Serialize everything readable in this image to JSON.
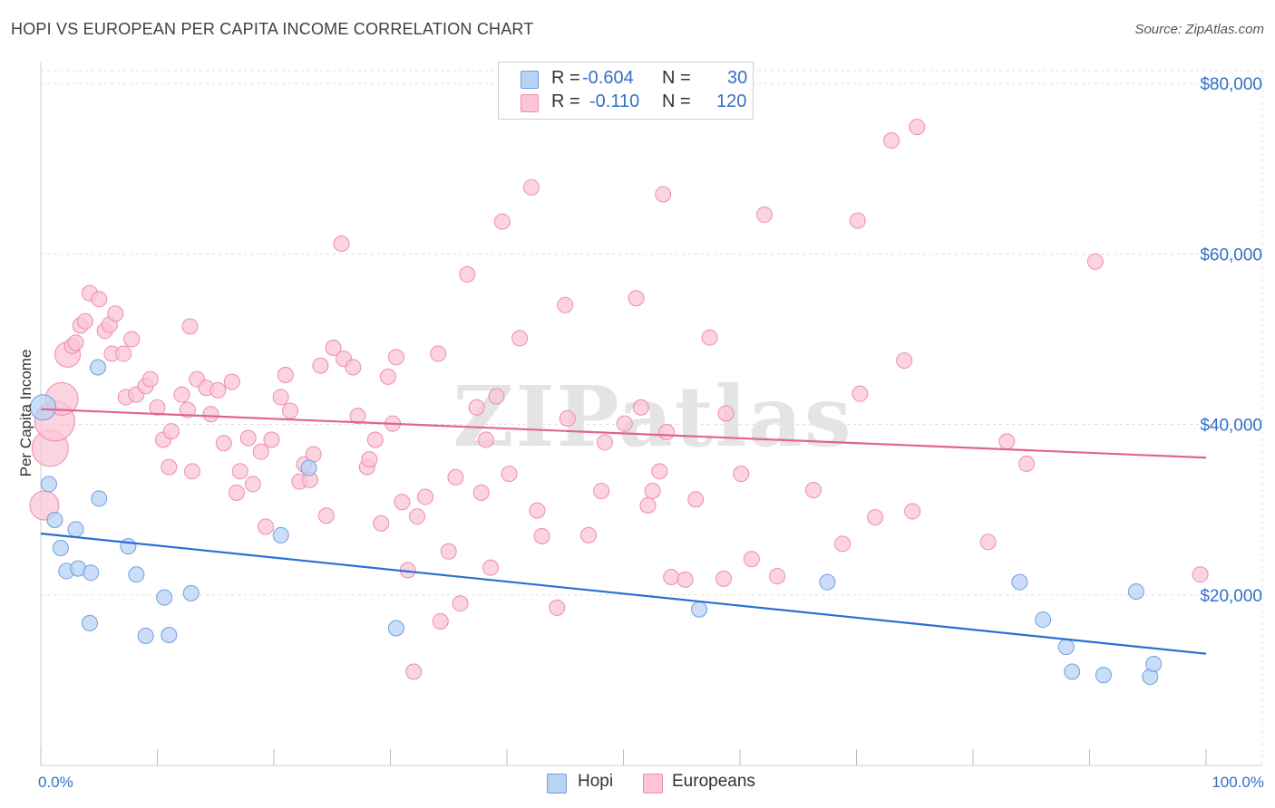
{
  "title": "HOPI VS EUROPEAN PER CAPITA INCOME CORRELATION CHART",
  "source": "Source: ZipAtlas.com",
  "watermark": "ZIPatlas",
  "legend": {
    "r_label": "R =",
    "n_label": "N =",
    "rows": [
      {
        "r": "-0.604",
        "n": "30",
        "color": "#b8d3f5",
        "border": "#6e9fe0"
      },
      {
        "r": "-0.110",
        "n": "120",
        "color": "#fbc5d6",
        "border": "#ec8db0"
      }
    ]
  },
  "bottom_legend": [
    "Hopi",
    "Europeans"
  ],
  "chart_data": {
    "type": "scatter",
    "title": "HOPI VS EUROPEAN PER CAPITA INCOME CORRELATION CHART",
    "xlabel": "",
    "ylabel": "Per Capita Income",
    "xlim": [
      0,
      100
    ],
    "ylim": [
      0,
      81500
    ],
    "x_tick_labels": [
      "0.0%",
      "100.0%"
    ],
    "y_ticks": [
      20000,
      40000,
      60000,
      80000
    ],
    "y_tick_labels": [
      "$20,000",
      "$40,000",
      "$60,000",
      "$80,000"
    ],
    "grid": true,
    "legend_position": "top-center",
    "series": [
      {
        "name": "Hopi",
        "color": "#b8d3f5",
        "stroke": "#6e9fe0",
        "line_color": "#2a6fd4",
        "trend": {
          "x": [
            0,
            100
          ],
          "y": [
            27200,
            13100
          ]
        },
        "points": [
          {
            "x": 0.2,
            "y": 42000,
            "s": 14
          },
          {
            "x": 0.7,
            "y": 33000
          },
          {
            "x": 1.2,
            "y": 28800
          },
          {
            "x": 1.7,
            "y": 25500
          },
          {
            "x": 2.2,
            "y": 22800
          },
          {
            "x": 3.0,
            "y": 27700
          },
          {
            "x": 3.2,
            "y": 23100
          },
          {
            "x": 4.2,
            "y": 16700
          },
          {
            "x": 4.3,
            "y": 22600
          },
          {
            "x": 4.9,
            "y": 46700
          },
          {
            "x": 5.0,
            "y": 31300
          },
          {
            "x": 7.5,
            "y": 25700
          },
          {
            "x": 8.2,
            "y": 22400
          },
          {
            "x": 9.0,
            "y": 15200
          },
          {
            "x": 10.6,
            "y": 19700
          },
          {
            "x": 11.0,
            "y": 15300
          },
          {
            "x": 12.9,
            "y": 20200
          },
          {
            "x": 20.6,
            "y": 27000
          },
          {
            "x": 23.0,
            "y": 34900
          },
          {
            "x": 30.5,
            "y": 16100
          },
          {
            "x": 56.5,
            "y": 18300
          },
          {
            "x": 67.5,
            "y": 21500
          },
          {
            "x": 84.0,
            "y": 21500
          },
          {
            "x": 86.0,
            "y": 17100
          },
          {
            "x": 88.0,
            "y": 13900
          },
          {
            "x": 88.5,
            "y": 11000
          },
          {
            "x": 91.2,
            "y": 10600
          },
          {
            "x": 94.0,
            "y": 20400
          },
          {
            "x": 95.2,
            "y": 10400
          },
          {
            "x": 95.5,
            "y": 11900
          }
        ]
      },
      {
        "name": "Europeans",
        "color": "#fbc5d6",
        "stroke": "#ec8db0",
        "line_color": "#e0648f",
        "trend": {
          "x": [
            0,
            100
          ],
          "y": [
            41800,
            36100
          ]
        },
        "points": [
          {
            "x": 0.3,
            "y": 30500,
            "s": 16
          },
          {
            "x": 0.8,
            "y": 37200,
            "s": 20
          },
          {
            "x": 1.2,
            "y": 40400,
            "s": 22
          },
          {
            "x": 1.8,
            "y": 43000,
            "s": 18
          },
          {
            "x": 2.3,
            "y": 48200,
            "s": 14
          },
          {
            "x": 2.7,
            "y": 49200
          },
          {
            "x": 3.0,
            "y": 49600
          },
          {
            "x": 3.4,
            "y": 51600
          },
          {
            "x": 3.8,
            "y": 52100
          },
          {
            "x": 4.2,
            "y": 55400
          },
          {
            "x": 5.0,
            "y": 54700
          },
          {
            "x": 5.5,
            "y": 51000
          },
          {
            "x": 5.9,
            "y": 51700
          },
          {
            "x": 6.1,
            "y": 48300
          },
          {
            "x": 6.4,
            "y": 53000
          },
          {
            "x": 7.1,
            "y": 48300
          },
          {
            "x": 7.3,
            "y": 43200
          },
          {
            "x": 7.8,
            "y": 50000
          },
          {
            "x": 8.2,
            "y": 43500
          },
          {
            "x": 9.0,
            "y": 44500
          },
          {
            "x": 9.4,
            "y": 45300
          },
          {
            "x": 10.0,
            "y": 42000
          },
          {
            "x": 10.5,
            "y": 38200
          },
          {
            "x": 11.0,
            "y": 35000
          },
          {
            "x": 11.2,
            "y": 39200
          },
          {
            "x": 12.1,
            "y": 43500
          },
          {
            "x": 12.6,
            "y": 41700
          },
          {
            "x": 12.8,
            "y": 51500
          },
          {
            "x": 13.0,
            "y": 34500
          },
          {
            "x": 13.4,
            "y": 45300
          },
          {
            "x": 14.2,
            "y": 44300
          },
          {
            "x": 14.6,
            "y": 41200
          },
          {
            "x": 15.2,
            "y": 44000
          },
          {
            "x": 15.7,
            "y": 37800
          },
          {
            "x": 16.4,
            "y": 45000
          },
          {
            "x": 16.8,
            "y": 32000
          },
          {
            "x": 17.1,
            "y": 34500
          },
          {
            "x": 17.8,
            "y": 38400
          },
          {
            "x": 18.2,
            "y": 33000
          },
          {
            "x": 18.9,
            "y": 36800
          },
          {
            "x": 19.3,
            "y": 28000
          },
          {
            "x": 19.8,
            "y": 38200
          },
          {
            "x": 20.6,
            "y": 43200
          },
          {
            "x": 21.0,
            "y": 45800
          },
          {
            "x": 21.4,
            "y": 41600
          },
          {
            "x": 22.2,
            "y": 33300
          },
          {
            "x": 22.6,
            "y": 35300
          },
          {
            "x": 23.1,
            "y": 33500
          },
          {
            "x": 23.4,
            "y": 36500
          },
          {
            "x": 24.0,
            "y": 46900
          },
          {
            "x": 24.5,
            "y": 29300
          },
          {
            "x": 25.1,
            "y": 49000
          },
          {
            "x": 25.8,
            "y": 61200
          },
          {
            "x": 26.0,
            "y": 47700
          },
          {
            "x": 26.8,
            "y": 46700
          },
          {
            "x": 27.2,
            "y": 41000
          },
          {
            "x": 28.0,
            "y": 35000
          },
          {
            "x": 28.2,
            "y": 35900
          },
          {
            "x": 28.7,
            "y": 38200
          },
          {
            "x": 29.2,
            "y": 28400
          },
          {
            "x": 29.8,
            "y": 45600
          },
          {
            "x": 30.2,
            "y": 40100
          },
          {
            "x": 30.5,
            "y": 47900
          },
          {
            "x": 31.0,
            "y": 30900
          },
          {
            "x": 31.5,
            "y": 22900
          },
          {
            "x": 32.0,
            "y": 11000
          },
          {
            "x": 32.3,
            "y": 29200
          },
          {
            "x": 33.0,
            "y": 31500
          },
          {
            "x": 34.1,
            "y": 48300
          },
          {
            "x": 34.3,
            "y": 16900
          },
          {
            "x": 35.0,
            "y": 25100
          },
          {
            "x": 35.6,
            "y": 33800
          },
          {
            "x": 36.0,
            "y": 19000
          },
          {
            "x": 36.6,
            "y": 57600
          },
          {
            "x": 37.4,
            "y": 42000
          },
          {
            "x": 37.8,
            "y": 32000
          },
          {
            "x": 38.2,
            "y": 38200
          },
          {
            "x": 38.6,
            "y": 23200
          },
          {
            "x": 39.1,
            "y": 43300
          },
          {
            "x": 39.6,
            "y": 63800
          },
          {
            "x": 40.2,
            "y": 34200
          },
          {
            "x": 41.1,
            "y": 50100
          },
          {
            "x": 42.1,
            "y": 67800
          },
          {
            "x": 42.6,
            "y": 29900
          },
          {
            "x": 43.0,
            "y": 26900
          },
          {
            "x": 44.3,
            "y": 18500
          },
          {
            "x": 45.0,
            "y": 54000
          },
          {
            "x": 45.2,
            "y": 40700
          },
          {
            "x": 47.0,
            "y": 27000
          },
          {
            "x": 48.1,
            "y": 32200
          },
          {
            "x": 48.4,
            "y": 37900
          },
          {
            "x": 50.1,
            "y": 40100
          },
          {
            "x": 51.1,
            "y": 54800
          },
          {
            "x": 51.5,
            "y": 42000
          },
          {
            "x": 52.1,
            "y": 30500
          },
          {
            "x": 52.5,
            "y": 32200
          },
          {
            "x": 53.1,
            "y": 34500
          },
          {
            "x": 53.4,
            "y": 67000
          },
          {
            "x": 53.7,
            "y": 39100
          },
          {
            "x": 54.1,
            "y": 22100
          },
          {
            "x": 55.3,
            "y": 21800
          },
          {
            "x": 56.2,
            "y": 31200
          },
          {
            "x": 57.4,
            "y": 50200
          },
          {
            "x": 58.6,
            "y": 21900
          },
          {
            "x": 58.8,
            "y": 41300
          },
          {
            "x": 60.1,
            "y": 34200
          },
          {
            "x": 61.0,
            "y": 24200
          },
          {
            "x": 62.1,
            "y": 64600
          },
          {
            "x": 63.2,
            "y": 22200
          },
          {
            "x": 66.3,
            "y": 32300
          },
          {
            "x": 68.8,
            "y": 26000
          },
          {
            "x": 70.1,
            "y": 63900
          },
          {
            "x": 70.3,
            "y": 43600
          },
          {
            "x": 71.6,
            "y": 29100
          },
          {
            "x": 73.0,
            "y": 73300
          },
          {
            "x": 74.1,
            "y": 47500
          },
          {
            "x": 74.8,
            "y": 29800
          },
          {
            "x": 75.2,
            "y": 74900
          },
          {
            "x": 81.3,
            "y": 26200
          },
          {
            "x": 82.9,
            "y": 38000
          },
          {
            "x": 84.6,
            "y": 35400
          },
          {
            "x": 90.5,
            "y": 59100
          },
          {
            "x": 99.5,
            "y": 22400
          }
        ]
      }
    ]
  }
}
